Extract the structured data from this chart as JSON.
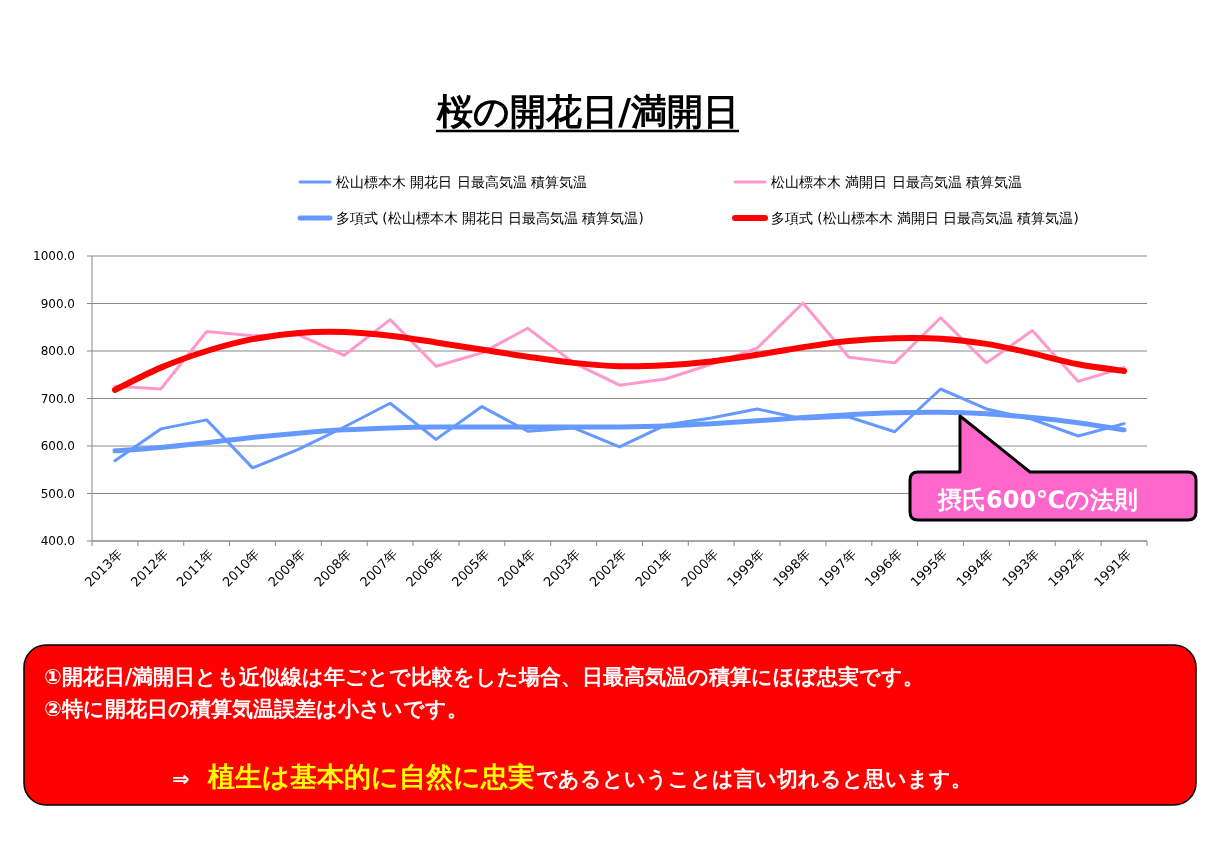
{
  "chart_data": {
    "type": "line",
    "title": "桜の開花日/満開日",
    "categories": [
      "2013年",
      "2012年",
      "2011年",
      "2010年",
      "2009年",
      "2008年",
      "2007年",
      "2006年",
      "2005年",
      "2004年",
      "2003年",
      "2002年",
      "2001年",
      "2000年",
      "1999年",
      "1998年",
      "1997年",
      "1996年",
      "1995年",
      "1994年",
      "1993年",
      "1992年",
      "1991年"
    ],
    "series": [
      {
        "name": "松山標本木 開花日 日最高気温 積算気温",
        "color": "#6699ff",
        "values": [
          569,
          636,
          655,
          554,
          593,
          640,
          690,
          614,
          683,
          631,
          638,
          598,
          644,
          659,
          678,
          657,
          661,
          630,
          720,
          678,
          656,
          621,
          647
        ]
      },
      {
        "name": "松山標本木 満開日 日最高気温 積算気温",
        "color": "#ff99cc",
        "values": [
          726,
          720,
          841,
          832,
          834,
          791,
          866,
          768,
          796,
          848,
          775,
          728,
          741,
          772,
          806,
          901,
          787,
          775,
          870,
          775,
          843,
          736,
          765
        ]
      },
      {
        "name": "多項式 (松山標本木 開花日 日最高気温 積算気温)",
        "type": "line",
        "color": "#6699ff",
        "values": [
          590,
          597,
          607,
          618,
          627,
          634,
          638,
          640,
          640,
          640,
          640,
          640,
          642,
          647,
          653,
          660,
          666,
          670,
          671,
          668,
          660,
          649,
          634
        ]
      },
      {
        "name": "多項式 (松山標本木 満開日 日最高気温 積算気温)",
        "type": "line",
        "color": "#ff0000",
        "values": [
          718,
          765,
          800,
          825,
          838,
          840,
          832,
          818,
          803,
          788,
          775,
          768,
          770,
          778,
          792,
          808,
          821,
          827,
          826,
          815,
          795,
          772,
          758
        ]
      }
    ],
    "ylim": [
      400,
      1000
    ],
    "yticks": [
      {
        "value": 400,
        "label": "400.0"
      },
      {
        "value": 500,
        "label": "500.0"
      },
      {
        "value": 600,
        "label": "600.0"
      },
      {
        "value": 700,
        "label": "700.0"
      },
      {
        "value": 800,
        "label": "800.0"
      },
      {
        "value": 900,
        "label": "900.0"
      },
      {
        "value": 1000,
        "label": "1000.0"
      }
    ],
    "grid": "y",
    "legend": "top",
    "marker": "none",
    "line_style": "solid",
    "annotations": [
      "摂氏600℃の法則",
      "①開花日/満開日とも近似線は年ごとで比較をした場合、日最高気温の積算にほぼ忠実です。",
      "②特に開花日の積算気温誤差は小さいです。",
      "⇒",
      "植生は基本的に自然に忠実",
      "であるということは言い切れると思います。"
    ]
  }
}
